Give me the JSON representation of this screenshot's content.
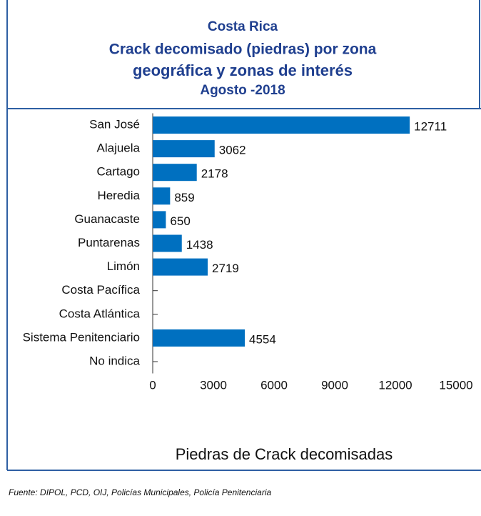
{
  "chart_data": {
    "type": "bar",
    "orientation": "horizontal",
    "title": [
      "Costa Rica",
      "Crack decomisado (piedras) por zona",
      "geográfica y zonas de interés",
      "Agosto -2018"
    ],
    "categories": [
      "San José",
      "Alajuela",
      "Cartago",
      "Heredia",
      "Guanacaste",
      "Puntarenas",
      "Limón",
      "Costa Pacífica",
      "Costa Atlántica",
      "Sistema Penitenciario",
      "No indica"
    ],
    "values": [
      12711,
      3062,
      2178,
      859,
      650,
      1438,
      2719,
      null,
      null,
      4554,
      null
    ],
    "color": "#0070c0",
    "xlim": [
      0,
      15000
    ],
    "xticks": [
      0,
      3000,
      6000,
      9000,
      12000,
      15000
    ],
    "xlabel": "Piedras de Crack decomisadas",
    "source": "Fuente: DIPOL, PCD, OIJ, Policías Municipales, Policía Penitenciaria"
  }
}
